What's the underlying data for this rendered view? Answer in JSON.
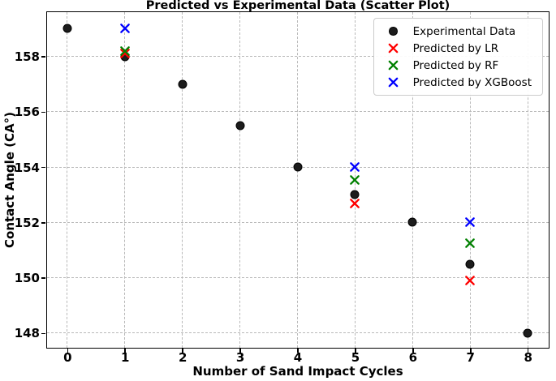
{
  "chart_data": {
    "type": "scatter",
    "title": "Predicted vs Experimental Data (Scatter Plot)",
    "xlabel": "Number of Sand Impact Cycles",
    "ylabel": "Contact Angle (CA°)",
    "xlim": [
      -0.35,
      8.35
    ],
    "ylim": [
      147.5,
      159.6
    ],
    "x_ticks": [
      0,
      1,
      2,
      3,
      4,
      5,
      6,
      7,
      8
    ],
    "y_ticks": [
      148,
      150,
      152,
      154,
      156,
      158
    ],
    "grid": true,
    "legend_position": "upper right",
    "series": [
      {
        "name": "Experimental Data",
        "marker": "circle",
        "color": "#1c1c1c",
        "x": [
          0,
          1,
          2,
          3,
          4,
          5,
          6,
          7,
          8
        ],
        "y": [
          159,
          158,
          157,
          155.5,
          154,
          153,
          152,
          150.5,
          148
        ]
      },
      {
        "name": "Predicted by LR",
        "marker": "x",
        "color": "#ff0000",
        "x": [
          1,
          5,
          7
        ],
        "y": [
          158.1,
          152.7,
          149.9
        ]
      },
      {
        "name": "Predicted by RF",
        "marker": "x",
        "color": "#008000",
        "x": [
          1,
          5,
          7
        ],
        "y": [
          158.2,
          153.55,
          151.25
        ]
      },
      {
        "name": "Predicted by XGBoost",
        "marker": "x",
        "color": "#0000ff",
        "x": [
          1,
          5,
          7
        ],
        "y": [
          159,
          154,
          152
        ]
      }
    ],
    "style": {
      "background": "#ffffff",
      "spine_color": "#000000",
      "grid_color": "#b9b9b9",
      "legend_border": "#cccccc"
    }
  }
}
